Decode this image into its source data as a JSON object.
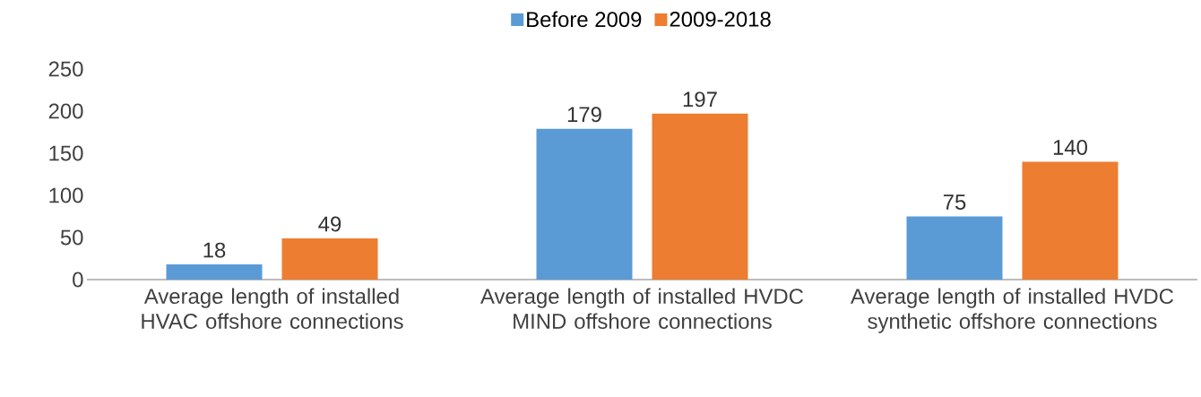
{
  "chart_data": {
    "type": "bar",
    "categories": [
      "Average length of installed HVAC offshore connections",
      "Average length of installed HVDC MIND offshore connections",
      "Average length of installed HVDC synthetic offshore connections"
    ],
    "series": [
      {
        "name": "Before 2009",
        "color": "#5b9bd5",
        "values": [
          18,
          179,
          75
        ]
      },
      {
        "name": "2009-2018",
        "color": "#ed7d31",
        "values": [
          49,
          197,
          140
        ]
      }
    ],
    "ylim": [
      0,
      250
    ],
    "yticks": [
      0,
      50,
      100,
      150,
      200,
      250
    ],
    "data_labels": true,
    "legend": "top"
  }
}
